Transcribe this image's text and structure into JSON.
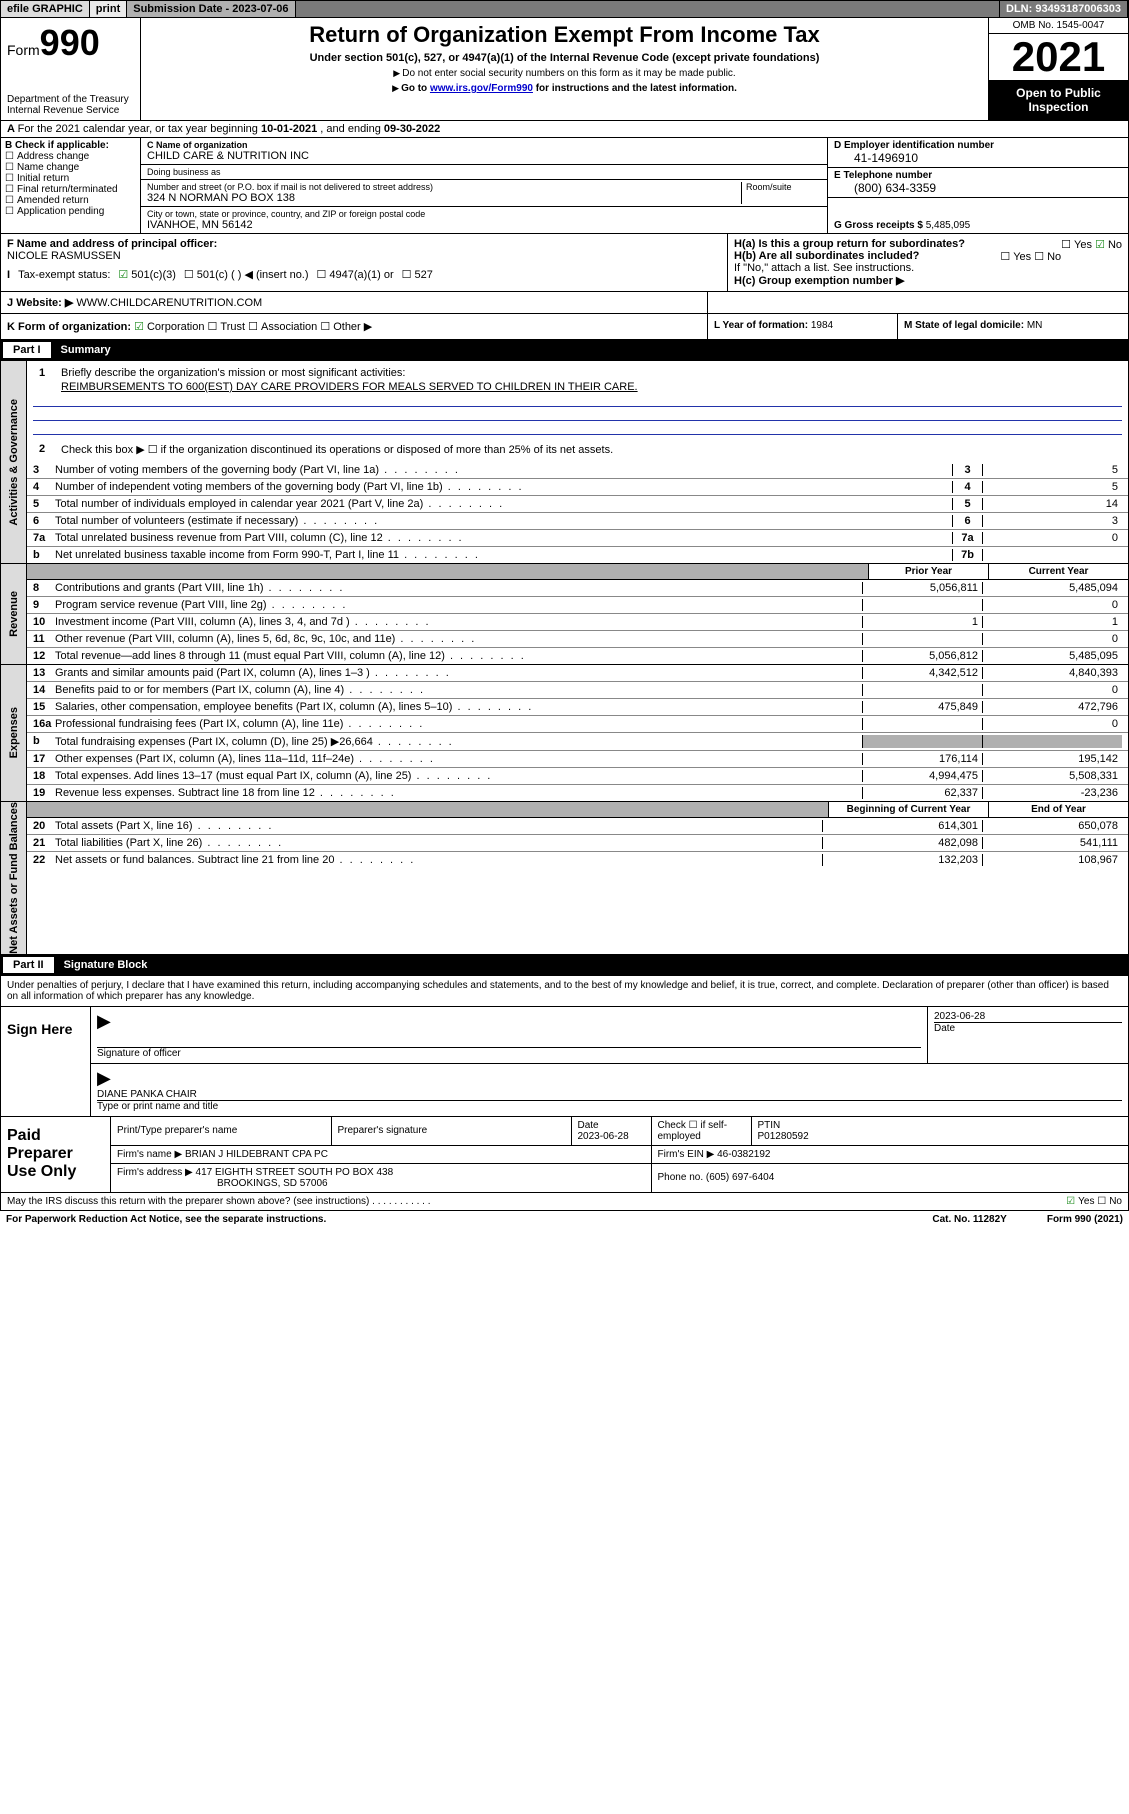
{
  "topbar": {
    "efile": "efile GRAPHIC",
    "print": "print",
    "subdate_label": "Submission Date - 2023-07-06",
    "dln": "DLN: 93493187006303"
  },
  "header": {
    "form_label": "Form",
    "form_num": "990",
    "dept": "Department of the Treasury\nInternal Revenue Service",
    "title": "Return of Organization Exempt From Income Tax",
    "sub": "Under section 501(c), 527, or 4947(a)(1) of the Internal Revenue Code (except private foundations)",
    "note1": "Do not enter social security numbers on this form as it may be made public.",
    "note2_pre": "Go to ",
    "note2_link": "www.irs.gov/Form990",
    "note2_post": " for instructions and the latest information.",
    "omb": "OMB No. 1545-0047",
    "year": "2021",
    "open": "Open to Public Inspection"
  },
  "row_a": {
    "text_pre": "For the 2021 calendar year, or tax year beginning ",
    "begin": "10-01-2021",
    "mid": " , and ending ",
    "end": "09-30-2022"
  },
  "col_b": {
    "label": "B Check if applicable:",
    "items": [
      "Address change",
      "Name change",
      "Initial return",
      "Final return/terminated",
      "Amended return",
      "Application pending"
    ]
  },
  "col_c": {
    "name_label": "C Name of organization",
    "name": "CHILD CARE & NUTRITION INC",
    "dba_label": "Doing business as",
    "dba": "",
    "addr_label": "Number and street (or P.O. box if mail is not delivered to street address)",
    "room_label": "Room/suite",
    "addr": "324 N NORMAN PO BOX 138",
    "city_label": "City or town, state or province, country, and ZIP or foreign postal code",
    "city": "IVANHOE, MN  56142"
  },
  "col_de": {
    "d_label": "D Employer identification number",
    "d_val": "41-1496910",
    "e_label": "E Telephone number",
    "e_val": "(800) 634-3359",
    "g_label": "G Gross receipts $ ",
    "g_val": "5,485,095"
  },
  "row_f": {
    "f_label": "F  Name and address of principal officer:",
    "f_val": "NICOLE RASMUSSEN",
    "h_a": "H(a)  Is this a group return for subordinates?",
    "h_a_yes": "Yes",
    "h_a_no": "No",
    "h_b": "H(b)  Are all subordinates included?",
    "h_b_note": "If \"No,\" attach a list. See instructions.",
    "h_c": "H(c)  Group exemption number ▶"
  },
  "row_i": {
    "label": "Tax-exempt status:",
    "opt1": "501(c)(3)",
    "opt2": "501(c) (  ) ◀ (insert no.)",
    "opt3": "4947(a)(1) or",
    "opt4": "527"
  },
  "row_j": {
    "label": "Website: ▶",
    "val": "WWW.CHILDCARENUTRITION.COM"
  },
  "row_k": {
    "label": "K Form of organization:",
    "opts": [
      "Corporation",
      "Trust",
      "Association",
      "Other ▶"
    ],
    "l_label": "L Year of formation: ",
    "l_val": "1984",
    "m_label": "M State of legal domicile: ",
    "m_val": "MN"
  },
  "part1": {
    "num": "Part I",
    "title": "Summary"
  },
  "mission": {
    "q1": "Briefly describe the organization's mission or most significant activities:",
    "q1_val": "REIMBURSEMENTS TO 600(EST) DAY CARE PROVIDERS FOR MEALS SERVED TO CHILDREN IN THEIR CARE.",
    "q2": "Check this box ▶ ☐  if the organization discontinued its operations or disposed of more than 25% of its net assets."
  },
  "governance": {
    "label": "Activities & Governance",
    "rows": [
      {
        "n": "3",
        "t": "Number of voting members of the governing body (Part VI, line 1a)",
        "box": "3",
        "v": "5"
      },
      {
        "n": "4",
        "t": "Number of independent voting members of the governing body (Part VI, line 1b)",
        "box": "4",
        "v": "5"
      },
      {
        "n": "5",
        "t": "Total number of individuals employed in calendar year 2021 (Part V, line 2a)",
        "box": "5",
        "v": "14"
      },
      {
        "n": "6",
        "t": "Total number of volunteers (estimate if necessary)",
        "box": "6",
        "v": "3"
      },
      {
        "n": "7a",
        "t": "Total unrelated business revenue from Part VIII, column (C), line 12",
        "box": "7a",
        "v": "0"
      },
      {
        "n": "b",
        "t": "Net unrelated business taxable income from Form 990-T, Part I, line 11",
        "box": "7b",
        "v": ""
      }
    ]
  },
  "yrhdr": {
    "c1": "Prior Year",
    "c2": "Current Year"
  },
  "revenue": {
    "label": "Revenue",
    "rows": [
      {
        "n": "8",
        "t": "Contributions and grants (Part VIII, line 1h)",
        "p": "5,056,811",
        "c": "5,485,094"
      },
      {
        "n": "9",
        "t": "Program service revenue (Part VIII, line 2g)",
        "p": "",
        "c": "0"
      },
      {
        "n": "10",
        "t": "Investment income (Part VIII, column (A), lines 3, 4, and 7d )",
        "p": "1",
        "c": "1"
      },
      {
        "n": "11",
        "t": "Other revenue (Part VIII, column (A), lines 5, 6d, 8c, 9c, 10c, and 11e)",
        "p": "",
        "c": "0"
      },
      {
        "n": "12",
        "t": "Total revenue—add lines 8 through 11 (must equal Part VIII, column (A), line 12)",
        "p": "5,056,812",
        "c": "5,485,095"
      }
    ]
  },
  "expenses": {
    "label": "Expenses",
    "rows": [
      {
        "n": "13",
        "t": "Grants and similar amounts paid (Part IX, column (A), lines 1–3 )",
        "p": "4,342,512",
        "c": "4,840,393"
      },
      {
        "n": "14",
        "t": "Benefits paid to or for members (Part IX, column (A), line 4)",
        "p": "",
        "c": "0"
      },
      {
        "n": "15",
        "t": "Salaries, other compensation, employee benefits (Part IX, column (A), lines 5–10)",
        "p": "475,849",
        "c": "472,796"
      },
      {
        "n": "16a",
        "t": "Professional fundraising fees (Part IX, column (A), line 11e)",
        "p": "",
        "c": "0"
      },
      {
        "n": "b",
        "t": "Total fundraising expenses (Part IX, column (D), line 25) ▶26,664",
        "p": "GRAY",
        "c": "GRAY"
      },
      {
        "n": "17",
        "t": "Other expenses (Part IX, column (A), lines 11a–11d, 11f–24e)",
        "p": "176,114",
        "c": "195,142"
      },
      {
        "n": "18",
        "t": "Total expenses. Add lines 13–17 (must equal Part IX, column (A), line 25)",
        "p": "4,994,475",
        "c": "5,508,331"
      },
      {
        "n": "19",
        "t": "Revenue less expenses. Subtract line 18 from line 12",
        "p": "62,337",
        "c": "-23,236"
      }
    ]
  },
  "yrhdr2": {
    "c1": "Beginning of Current Year",
    "c2": "End of Year"
  },
  "netassets": {
    "label": "Net Assets or Fund Balances",
    "rows": [
      {
        "n": "20",
        "t": "Total assets (Part X, line 16)",
        "p": "614,301",
        "c": "650,078"
      },
      {
        "n": "21",
        "t": "Total liabilities (Part X, line 26)",
        "p": "482,098",
        "c": "541,111"
      },
      {
        "n": "22",
        "t": "Net assets or fund balances. Subtract line 21 from line 20",
        "p": "132,203",
        "c": "108,967"
      }
    ]
  },
  "part2": {
    "num": "Part II",
    "title": "Signature Block"
  },
  "sig_intro": "Under penalties of perjury, I declare that I have examined this return, including accompanying schedules and statements, and to the best of my knowledge and belief, it is true, correct, and complete. Declaration of preparer (other than officer) is based on all information of which preparer has any knowledge.",
  "sign": {
    "label": "Sign Here",
    "sig_lab": "Signature of officer",
    "date": "2023-06-28",
    "date_lab": "Date",
    "name": "DIANE PANKA  CHAIR",
    "name_lab": "Type or print name and title"
  },
  "prep": {
    "label": "Paid Preparer Use Only",
    "h1": "Print/Type preparer's name",
    "h2": "Preparer's signature",
    "h3": "Date",
    "h3v": "2023-06-28",
    "h4": "Check ☐ if self-employed",
    "h5": "PTIN",
    "h5v": "P01280592",
    "firm_lab": "Firm's name    ▶",
    "firm": "BRIAN J HILDEBRANT CPA PC",
    "ein_lab": "Firm's EIN ▶",
    "ein": "46-0382192",
    "addr_lab": "Firm's address ▶",
    "addr1": "417 EIGHTH STREET SOUTH PO BOX 438",
    "addr2": "BROOKINGS, SD  57006",
    "ph_lab": "Phone no.",
    "ph": "(605) 697-6404"
  },
  "footer": {
    "q": "May the IRS discuss this return with the preparer shown above? (see instructions)",
    "yes": "Yes",
    "no": "No",
    "pra": "For Paperwork Reduction Act Notice, see the separate instructions.",
    "cat": "Cat. No. 11282Y",
    "form": "Form 990 (2021)"
  }
}
